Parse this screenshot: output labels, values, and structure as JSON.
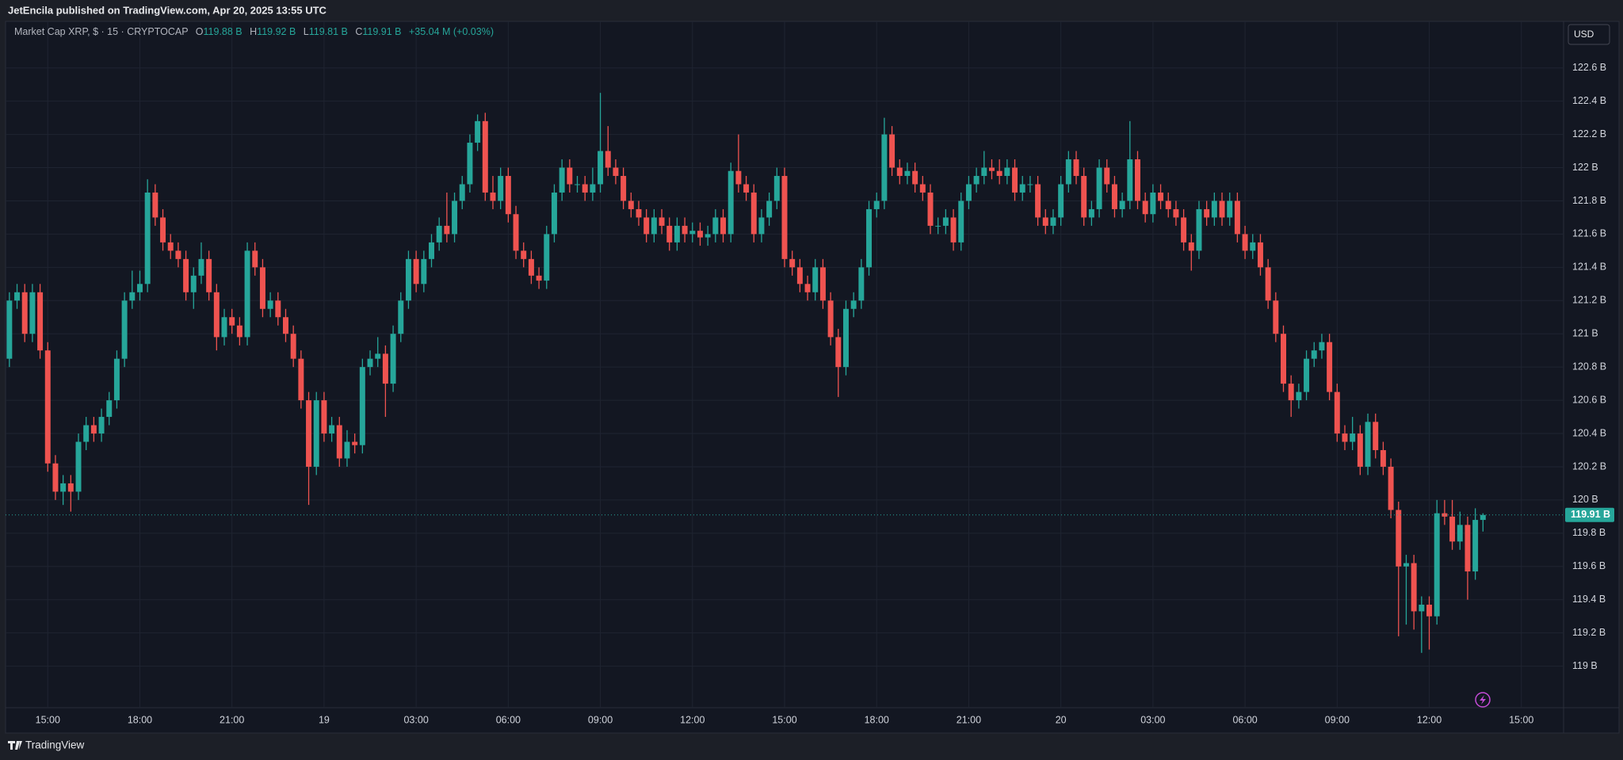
{
  "header": {
    "text": "JetEncila published on TradingView.com, Apr 20, 2025 13:55 UTC"
  },
  "legend": {
    "symbol": "Market Cap XRP, $ · 15 · CRYPTOCAP",
    "open": {
      "key": "O",
      "value": "119.88 B"
    },
    "high": {
      "key": "H",
      "value": "119.92 B"
    },
    "low": {
      "key": "L",
      "value": "119.81 B"
    },
    "close": {
      "key": "C",
      "value": "119.91 B"
    },
    "change": "+35.04 M (+0.03%)"
  },
  "currency_button": "USD",
  "footer": {
    "brand": "TradingView"
  },
  "chart_data": {
    "type": "candlestick",
    "up_color": "#26a69a",
    "down_color": "#ef5350",
    "grid": true,
    "categories": [
      null,
      null,
      null,
      null,
      null,
      "15:00",
      null,
      null,
      null,
      null,
      null,
      null,
      null,
      null,
      null,
      null,
      null,
      "18:00",
      null,
      null,
      null,
      null,
      null,
      null,
      null,
      null,
      null,
      null,
      null,
      "21:00",
      null,
      null,
      null,
      null,
      null,
      null,
      null,
      null,
      null,
      null,
      null,
      "19",
      null,
      null,
      null,
      null,
      null,
      null,
      null,
      null,
      null,
      null,
      null,
      "03:00",
      null,
      null,
      null,
      null,
      null,
      null,
      null,
      null,
      null,
      null,
      null,
      "06:00",
      null,
      null,
      null,
      null,
      null,
      null,
      null,
      null,
      null,
      null,
      null,
      "09:00",
      null,
      null,
      null,
      null,
      null,
      null,
      null,
      null,
      null,
      null,
      null,
      "12:00",
      null,
      null,
      null,
      null,
      null,
      null,
      null,
      null,
      null,
      null,
      null,
      "15:00",
      null,
      null,
      null,
      null,
      null,
      null,
      null,
      null,
      null,
      null,
      null,
      "18:00",
      null,
      null,
      null,
      null,
      null,
      null,
      null,
      null,
      null,
      null,
      null,
      "21:00",
      null,
      null,
      null,
      null,
      null,
      null,
      null,
      null,
      null,
      null,
      null,
      "20",
      null,
      null,
      null,
      null,
      null,
      null,
      null,
      null,
      null,
      null,
      null,
      "03:00",
      null,
      null,
      null,
      null,
      null,
      null,
      null,
      null,
      null,
      null,
      null,
      "06:00",
      null,
      null,
      null,
      null,
      null,
      null,
      null,
      null,
      null,
      null,
      null,
      "09:00",
      null,
      null,
      null,
      null,
      null,
      null,
      null,
      null,
      null,
      null,
      null,
      "12:00",
      null,
      null,
      null,
      null,
      null,
      null,
      null,
      null,
      null,
      null,
      null,
      "15:00",
      null,
      null,
      null,
      null,
      null
    ],
    "open": [
      120.85,
      121.2,
      121.25,
      121.0,
      121.25,
      120.9,
      120.22,
      120.05,
      120.1,
      120.05,
      120.35,
      120.45,
      120.4,
      120.5,
      120.6,
      120.85,
      121.2,
      121.25,
      121.3,
      121.85,
      121.7,
      121.55,
      121.5,
      121.45,
      121.25,
      121.35,
      121.45,
      121.25,
      120.98,
      121.1,
      121.05,
      120.98,
      121.5,
      121.4,
      121.15,
      121.2,
      121.1,
      121.0,
      120.85,
      120.6,
      120.2,
      120.6,
      120.4,
      120.45,
      120.25,
      120.35,
      120.33,
      120.8,
      120.85,
      120.88,
      120.7,
      121.0,
      121.2,
      121.45,
      121.3,
      121.45,
      121.55,
      121.65,
      121.6,
      121.8,
      121.9,
      122.15,
      122.28,
      121.85,
      121.8,
      121.95,
      121.72,
      121.5,
      121.45,
      121.35,
      121.32,
      121.6,
      121.85,
      122.0,
      121.9,
      121.9,
      121.85,
      121.9,
      122.1,
      122.0,
      121.95,
      121.8,
      121.75,
      121.7,
      121.6,
      121.7,
      121.65,
      121.55,
      121.65,
      121.6,
      121.62,
      121.58,
      121.6,
      121.7,
      121.6,
      121.98,
      121.9,
      121.85,
      121.6,
      121.7,
      121.8,
      121.95,
      121.45,
      121.4,
      121.3,
      121.25,
      121.4,
      121.2,
      120.98,
      120.8,
      121.15,
      121.2,
      121.4,
      121.75,
      121.8,
      122.2,
      122.0,
      121.95,
      121.98,
      121.9,
      121.85,
      121.65,
      121.65,
      121.7,
      121.55,
      121.8,
      121.9,
      121.95,
      122.0,
      121.98,
      121.95,
      122.0,
      121.85,
      121.9,
      121.9,
      121.7,
      121.65,
      121.7,
      121.9,
      122.05,
      121.95,
      121.7,
      121.75,
      122.0,
      121.9,
      121.75,
      121.8,
      122.05,
      121.8,
      121.72,
      121.85,
      121.8,
      121.75,
      121.7,
      121.55,
      121.5,
      121.75,
      121.7,
      121.8,
      121.7,
      121.8,
      121.6,
      121.5,
      121.55,
      121.4,
      121.2,
      121.0,
      120.7,
      120.6,
      120.65,
      120.85,
      120.9,
      120.95,
      120.65,
      120.4,
      120.35,
      120.4,
      120.2,
      120.47,
      120.3,
      120.2,
      119.94,
      119.6,
      119.62,
      119.33,
      119.37,
      119.3,
      119.92,
      119.9,
      119.75,
      119.85,
      119.57,
      119.88,
      null,
      null,
      null,
      null,
      null,
      null,
      null,
      null,
      null,
      null
    ],
    "high": [
      121.25,
      121.3,
      121.3,
      121.3,
      121.3,
      120.95,
      120.27,
      120.15,
      120.15,
      120.4,
      120.5,
      120.5,
      120.55,
      120.65,
      120.9,
      121.25,
      121.38,
      121.38,
      121.93,
      121.9,
      121.75,
      121.6,
      121.55,
      121.5,
      121.4,
      121.55,
      121.5,
      121.3,
      121.15,
      121.15,
      121.1,
      121.55,
      121.55,
      121.45,
      121.25,
      121.25,
      121.15,
      121.05,
      120.9,
      120.65,
      120.65,
      120.65,
      120.5,
      120.5,
      120.42,
      120.4,
      120.85,
      120.9,
      120.98,
      120.93,
      121.05,
      121.25,
      121.5,
      121.5,
      121.5,
      121.6,
      121.7,
      121.85,
      121.85,
      121.95,
      122.2,
      122.32,
      122.33,
      121.95,
      122.0,
      122.0,
      121.77,
      121.55,
      121.5,
      121.4,
      121.65,
      121.9,
      122.05,
      122.05,
      121.95,
      121.95,
      122.0,
      122.45,
      122.25,
      122.05,
      122.0,
      121.85,
      121.8,
      121.75,
      121.75,
      121.75,
      121.7,
      121.7,
      121.7,
      121.67,
      121.67,
      121.65,
      121.75,
      121.75,
      122.03,
      122.2,
      121.95,
      121.9,
      121.75,
      121.85,
      122.0,
      122.0,
      121.5,
      121.45,
      121.35,
      121.45,
      121.45,
      121.25,
      121.03,
      121.2,
      121.25,
      121.45,
      121.8,
      121.85,
      122.3,
      122.25,
      122.05,
      122.03,
      122.03,
      121.95,
      121.9,
      121.7,
      121.75,
      121.75,
      121.85,
      121.95,
      122.0,
      122.1,
      122.05,
      122.05,
      122.05,
      122.05,
      121.95,
      121.95,
      121.95,
      121.75,
      121.75,
      121.95,
      122.1,
      122.1,
      122.0,
      121.8,
      122.05,
      122.05,
      121.95,
      121.85,
      122.28,
      122.1,
      121.85,
      121.9,
      121.9,
      121.85,
      121.8,
      121.75,
      121.6,
      121.8,
      121.8,
      121.85,
      121.85,
      121.85,
      121.85,
      121.65,
      121.6,
      121.6,
      121.45,
      121.25,
      121.05,
      120.75,
      120.7,
      120.9,
      120.95,
      121.0,
      121.0,
      120.7,
      120.45,
      120.5,
      120.45,
      120.52,
      120.52,
      120.35,
      120.25,
      119.99,
      119.67,
      119.67,
      119.42,
      119.42,
      120.0,
      120.0,
      120.0,
      119.93,
      119.9,
      119.95,
      119.92,
      null,
      null,
      null,
      null,
      null,
      null,
      null,
      null,
      null,
      null
    ],
    "low": [
      120.8,
      121.15,
      120.95,
      120.95,
      120.85,
      120.17,
      120.0,
      119.97,
      119.93,
      120.0,
      120.3,
      120.35,
      120.35,
      120.45,
      120.55,
      120.8,
      121.15,
      121.2,
      121.25,
      121.65,
      121.5,
      121.45,
      121.4,
      121.2,
      121.15,
      121.3,
      121.2,
      120.9,
      120.93,
      121.0,
      120.93,
      120.93,
      121.35,
      121.1,
      121.1,
      121.05,
      120.95,
      120.8,
      120.55,
      119.97,
      120.15,
      120.35,
      120.35,
      120.2,
      120.2,
      120.28,
      120.28,
      120.75,
      120.8,
      120.5,
      120.65,
      120.95,
      121.15,
      121.25,
      121.25,
      121.4,
      121.5,
      121.55,
      121.55,
      121.75,
      121.85,
      122.1,
      121.8,
      121.75,
      121.75,
      121.67,
      121.45,
      121.4,
      121.3,
      121.27,
      121.27,
      121.55,
      121.8,
      121.85,
      121.85,
      121.8,
      121.8,
      121.85,
      121.95,
      121.9,
      121.75,
      121.7,
      121.65,
      121.55,
      121.55,
      121.6,
      121.5,
      121.5,
      121.55,
      121.55,
      121.53,
      121.53,
      121.55,
      121.55,
      121.55,
      121.85,
      121.8,
      121.55,
      121.55,
      121.65,
      121.75,
      121.4,
      121.35,
      121.25,
      121.2,
      121.2,
      121.15,
      120.93,
      120.62,
      120.75,
      121.1,
      121.15,
      121.35,
      121.7,
      121.75,
      121.95,
      121.9,
      121.9,
      121.85,
      121.8,
      121.6,
      121.6,
      121.6,
      121.5,
      121.5,
      121.75,
      121.85,
      121.9,
      121.93,
      121.9,
      121.9,
      121.8,
      121.8,
      121.85,
      121.65,
      121.6,
      121.6,
      121.65,
      121.85,
      121.9,
      121.65,
      121.65,
      121.7,
      121.85,
      121.7,
      121.7,
      121.75,
      121.75,
      121.67,
      121.67,
      121.75,
      121.7,
      121.65,
      121.5,
      121.38,
      121.45,
      121.65,
      121.65,
      121.65,
      121.65,
      121.55,
      121.45,
      121.45,
      121.35,
      121.15,
      120.95,
      120.65,
      120.5,
      120.55,
      120.6,
      120.8,
      120.85,
      120.6,
      120.35,
      120.3,
      120.3,
      120.15,
      120.15,
      120.25,
      120.15,
      119.89,
      119.18,
      119.25,
      119.22,
      119.08,
      119.1,
      119.25,
      119.85,
      119.7,
      119.7,
      119.4,
      119.52,
      119.81,
      null,
      null,
      null,
      null,
      null,
      null,
      null,
      null,
      null,
      null
    ],
    "close": [
      121.2,
      121.25,
      121.0,
      121.25,
      120.9,
      120.22,
      120.05,
      120.1,
      120.05,
      120.35,
      120.45,
      120.4,
      120.5,
      120.6,
      120.85,
      121.2,
      121.25,
      121.3,
      121.85,
      121.7,
      121.55,
      121.5,
      121.45,
      121.25,
      121.35,
      121.45,
      121.25,
      120.98,
      121.1,
      121.05,
      120.98,
      121.5,
      121.4,
      121.15,
      121.2,
      121.1,
      121.0,
      120.85,
      120.6,
      120.2,
      120.6,
      120.4,
      120.45,
      120.25,
      120.35,
      120.33,
      120.8,
      120.85,
      120.88,
      120.7,
      121.0,
      121.2,
      121.45,
      121.3,
      121.45,
      121.55,
      121.65,
      121.6,
      121.8,
      121.9,
      122.15,
      122.28,
      121.85,
      121.8,
      121.95,
      121.72,
      121.5,
      121.45,
      121.35,
      121.32,
      121.6,
      121.85,
      122.0,
      121.9,
      121.9,
      121.85,
      121.9,
      122.1,
      122.0,
      121.95,
      121.8,
      121.75,
      121.7,
      121.6,
      121.7,
      121.65,
      121.55,
      121.65,
      121.6,
      121.62,
      121.58,
      121.6,
      121.7,
      121.6,
      121.98,
      121.9,
      121.85,
      121.6,
      121.7,
      121.8,
      121.95,
      121.45,
      121.4,
      121.3,
      121.25,
      121.4,
      121.2,
      120.98,
      120.8,
      121.15,
      121.2,
      121.4,
      121.75,
      121.8,
      122.2,
      122.0,
      121.95,
      121.98,
      121.9,
      121.85,
      121.65,
      121.65,
      121.7,
      121.55,
      121.8,
      121.9,
      121.95,
      122.0,
      121.98,
      121.95,
      122.0,
      121.85,
      121.9,
      121.9,
      121.7,
      121.65,
      121.7,
      121.9,
      122.05,
      121.95,
      121.7,
      121.75,
      122.0,
      121.9,
      121.75,
      121.8,
      122.05,
      121.8,
      121.72,
      121.85,
      121.8,
      121.75,
      121.7,
      121.55,
      121.5,
      121.75,
      121.7,
      121.8,
      121.7,
      121.8,
      121.6,
      121.5,
      121.55,
      121.4,
      121.2,
      121.0,
      120.7,
      120.6,
      120.65,
      120.85,
      120.9,
      120.95,
      120.65,
      120.4,
      120.35,
      120.4,
      120.2,
      120.47,
      120.3,
      120.2,
      119.94,
      119.6,
      119.62,
      119.33,
      119.37,
      119.3,
      119.92,
      119.9,
      119.75,
      119.85,
      119.57,
      119.88,
      119.91,
      null,
      null,
      null,
      null,
      null,
      null,
      null,
      null,
      null,
      null
    ],
    "last_price": {
      "value": 119.91,
      "label": "119.91 B"
    },
    "ylim": [
      118.75,
      122.88
    ],
    "yticks": [
      {
        "value": 119,
        "label": "119 B"
      },
      {
        "value": 119.2,
        "label": "119.2 B"
      },
      {
        "value": 119.4,
        "label": "119.4 B"
      },
      {
        "value": 119.6,
        "label": "119.6 B"
      },
      {
        "value": 119.8,
        "label": "119.8 B"
      },
      {
        "value": 120,
        "label": "120 B"
      },
      {
        "value": 120.2,
        "label": "120.2 B"
      },
      {
        "value": 120.4,
        "label": "120.4 B"
      },
      {
        "value": 120.6,
        "label": "120.6 B"
      },
      {
        "value": 120.8,
        "label": "120.8 B"
      },
      {
        "value": 121,
        "label": "121 B"
      },
      {
        "value": 121.2,
        "label": "121.2 B"
      },
      {
        "value": 121.4,
        "label": "121.4 B"
      },
      {
        "value": 121.6,
        "label": "121.6 B"
      },
      {
        "value": 121.8,
        "label": "121.8 B"
      },
      {
        "value": 122,
        "label": "122 B"
      },
      {
        "value": 122.2,
        "label": "122.2 B"
      },
      {
        "value": 122.4,
        "label": "122.4 B"
      },
      {
        "value": 122.6,
        "label": "122.6 B"
      }
    ]
  }
}
